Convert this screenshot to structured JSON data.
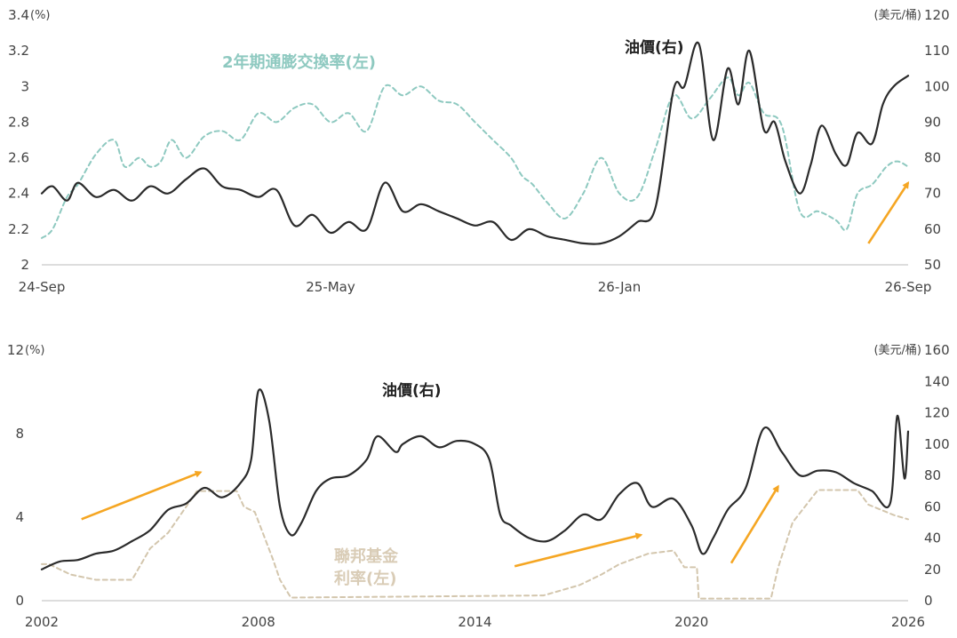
{
  "colors": {
    "oil": "#2b2b2b",
    "inflation": "#8ec9c0",
    "fed_rate": "#d3c6ad",
    "arrow": "#f5a623",
    "axis": "#bbbbbb",
    "text": "#444444"
  },
  "chart_data": [
    {
      "type": "line",
      "title": "",
      "x_ticks": [
        "24-Sep",
        "25-May",
        "26-Jan",
        "26-Sep"
      ],
      "x_range": [
        0,
        24
      ],
      "y_left": {
        "unit": "(%)",
        "ticks": [
          "2",
          "2.2",
          "2.4",
          "2.6",
          "2.8",
          "3",
          "3.2",
          "3.4"
        ],
        "range": [
          2,
          3.4
        ]
      },
      "y_right": {
        "unit": "(美元/桶)",
        "ticks": [
          "50",
          "60",
          "70",
          "80",
          "90",
          "100",
          "110",
          "120"
        ],
        "range": [
          50,
          120
        ]
      },
      "series": [
        {
          "name": "2年期通膨交換率(左)",
          "axis": "left",
          "style": "dashed",
          "x": [
            0,
            0.3,
            0.7,
            1,
            1.5,
            2,
            2.3,
            2.7,
            3,
            3.3,
            3.6,
            4,
            4.5,
            5,
            5.5,
            6,
            6.5,
            7,
            7.5,
            8,
            8.5,
            9,
            9.5,
            10,
            10.5,
            11,
            11.5,
            12,
            12.5,
            13,
            13.3,
            13.6,
            14,
            14.5,
            15,
            15.5,
            16,
            16.5,
            17,
            17.5,
            18,
            18.5,
            19,
            19.3,
            19.6,
            20,
            20.5,
            21,
            21.5,
            22,
            22.3,
            22.6,
            23,
            23.4,
            23.7,
            24
          ],
          "y": [
            2.15,
            2.2,
            2.38,
            2.45,
            2.62,
            2.7,
            2.55,
            2.6,
            2.55,
            2.58,
            2.7,
            2.6,
            2.72,
            2.75,
            2.7,
            2.85,
            2.8,
            2.88,
            2.9,
            2.8,
            2.85,
            2.75,
            3.0,
            2.95,
            3.0,
            2.92,
            2.9,
            2.8,
            2.7,
            2.6,
            2.5,
            2.45,
            2.35,
            2.26,
            2.4,
            2.6,
            2.4,
            2.38,
            2.65,
            2.95,
            2.82,
            2.93,
            3.05,
            2.95,
            3.02,
            2.85,
            2.78,
            2.3,
            2.3,
            2.25,
            2.2,
            2.4,
            2.45,
            2.55,
            2.58,
            2.55
          ]
        },
        {
          "name": "油價(右)",
          "axis": "right",
          "style": "solid",
          "x": [
            0,
            0.3,
            0.7,
            1,
            1.5,
            2,
            2.5,
            3,
            3.5,
            4,
            4.5,
            5,
            5.5,
            6,
            6.5,
            7,
            7.5,
            8,
            8.5,
            9,
            9.5,
            10,
            10.5,
            11,
            11.5,
            12,
            12.5,
            13,
            13.5,
            14,
            14.5,
            15,
            15.5,
            16,
            16.5,
            17,
            17.5,
            17.8,
            18.2,
            18.6,
            19,
            19.3,
            19.6,
            20,
            20.3,
            20.6,
            21,
            21.3,
            21.6,
            22,
            22.3,
            22.6,
            23,
            23.3,
            23.6,
            24
          ],
          "y": [
            70,
            72,
            68,
            73,
            69,
            71,
            68,
            72,
            70,
            74,
            77,
            72,
            71,
            69,
            71,
            61,
            64,
            59,
            62,
            60,
            73,
            65,
            67,
            65,
            63,
            61,
            62,
            57,
            60,
            58,
            57,
            56,
            56,
            58,
            62,
            66,
            99,
            100,
            112,
            85,
            105,
            95,
            110,
            88,
            90,
            79,
            70,
            78,
            89,
            81,
            78,
            87,
            84,
            95,
            100,
            103
          ]
        }
      ],
      "annotations": [
        "2年期通膨交換率(左)",
        "油價(右)"
      ],
      "arrows": [
        {
          "from": [
            22.9,
            56
          ],
          "to": [
            24,
            73
          ],
          "axis": "right"
        }
      ],
      "grid": false
    },
    {
      "type": "line",
      "title": "",
      "x_ticks": [
        "2002",
        "2008",
        "2014",
        "2020",
        "2026"
      ],
      "x_range": [
        2002,
        2026
      ],
      "y_left": {
        "unit": "(%)",
        "ticks": [
          "0",
          "4",
          "8",
          "12"
        ],
        "range": [
          0,
          12
        ]
      },
      "y_right": {
        "unit": "(美元/桶)",
        "ticks": [
          "0",
          "20",
          "40",
          "60",
          "80",
          "100",
          "120",
          "140",
          "160"
        ],
        "range": [
          0,
          160
        ]
      },
      "series": [
        {
          "name": "聯邦基金利率(左)",
          "axis": "left",
          "style": "dashed",
          "x": [
            2002,
            2002.2,
            2002.8,
            2003.5,
            2004.5,
            2005,
            2005.5,
            2006.3,
            2007.4,
            2007.6,
            2007.9,
            2008.4,
            2008.6,
            2008.9,
            2015.9,
            2016.9,
            2017.5,
            2018,
            2018.8,
            2019.5,
            2019.8,
            2020.15,
            2020.2,
            2022.2,
            2022.4,
            2022.8,
            2023.5,
            2024.6,
            2024.9,
            2025.6,
            2026
          ],
          "y": [
            1.75,
            1.75,
            1.25,
            1.0,
            1.0,
            2.5,
            3.25,
            5.25,
            5.25,
            4.5,
            4.25,
            2.0,
            1.0,
            0.15,
            0.25,
            0.75,
            1.25,
            1.75,
            2.25,
            2.4,
            1.6,
            1.6,
            0.1,
            0.1,
            1.6,
            3.75,
            5.3,
            5.3,
            4.6,
            4.1,
            3.9
          ]
        },
        {
          "name": "油價(右)",
          "axis": "right",
          "style": "solid",
          "x": [
            2002,
            2002.5,
            2003,
            2003.5,
            2004,
            2004.5,
            2005,
            2005.5,
            2006,
            2006.5,
            2007,
            2007.5,
            2007.8,
            2008,
            2008.3,
            2008.6,
            2008.9,
            2009.2,
            2009.6,
            2010,
            2010.5,
            2011,
            2011.3,
            2011.8,
            2012,
            2012.5,
            2013,
            2013.5,
            2014,
            2014.4,
            2014.7,
            2015,
            2015.5,
            2016,
            2016.5,
            2017,
            2017.5,
            2018,
            2018.5,
            2018.9,
            2019.5,
            2020,
            2020.3,
            2020.6,
            2021,
            2021.5,
            2022,
            2022.5,
            2023,
            2023.5,
            2024,
            2024.5,
            2025,
            2025.5,
            2025.7,
            2025.9,
            2026
          ],
          "y": [
            20,
            25,
            26,
            30,
            32,
            38,
            45,
            58,
            62,
            72,
            66,
            75,
            90,
            134,
            115,
            60,
            42,
            50,
            70,
            78,
            80,
            90,
            105,
            95,
            100,
            105,
            98,
            102,
            100,
            90,
            55,
            48,
            40,
            38,
            45,
            55,
            52,
            68,
            75,
            60,
            65,
            48,
            30,
            40,
            58,
            72,
            110,
            95,
            80,
            83,
            82,
            75,
            70,
            62,
            118,
            78,
            108
          ]
        }
      ],
      "annotations": [
        "聯邦基金利率(左)",
        "油價(右)"
      ],
      "arrows": [
        {
          "from": [
            2003.1,
            52
          ],
          "to": [
            2006.4,
            82
          ],
          "axis": "right"
        },
        {
          "from": [
            2015.1,
            22
          ],
          "to": [
            2018.6,
            42
          ],
          "axis": "right"
        },
        {
          "from": [
            2021.1,
            24
          ],
          "to": [
            2022.4,
            73
          ],
          "axis": "right"
        }
      ],
      "grid": false
    }
  ],
  "labels": {
    "top_infl": "2年期通膨交換率(左)",
    "top_oil": "油價(右)",
    "bottom_oil": "油價(右)",
    "bottom_fed_line1": "聯邦基金",
    "bottom_fed_line2": "利率(左)"
  }
}
